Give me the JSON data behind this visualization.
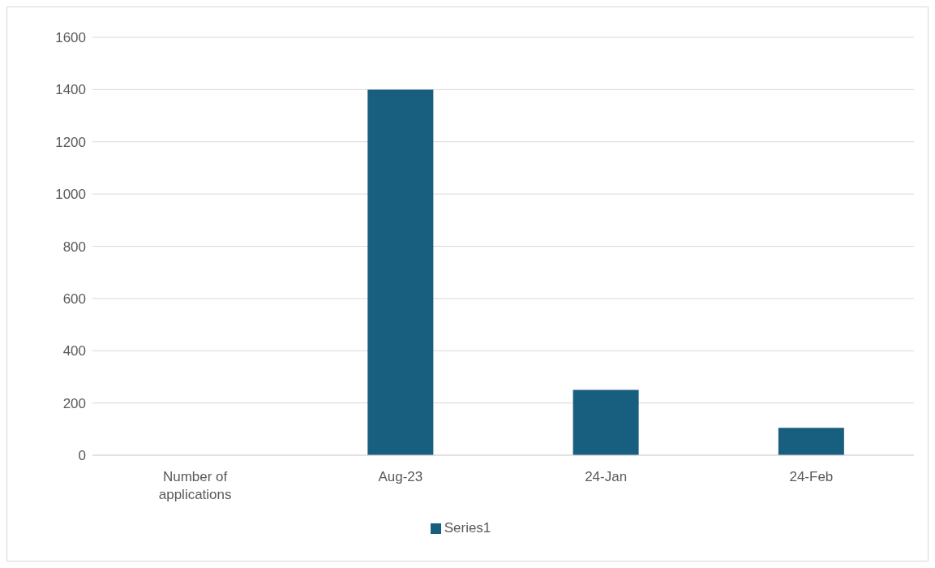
{
  "chart_data": {
    "type": "bar",
    "categories": [
      "Number of applications",
      "Aug-23",
      "24-Jan",
      "24-Feb"
    ],
    "series": [
      {
        "name": "Series1",
        "color": "#175e7f",
        "values": [
          null,
          1400,
          250,
          105
        ]
      }
    ],
    "ylim": [
      0,
      1600
    ],
    "yticks": [
      0,
      200,
      400,
      600,
      800,
      1000,
      1200,
      1400,
      1600
    ],
    "grid": "y",
    "legend": "bottom"
  }
}
